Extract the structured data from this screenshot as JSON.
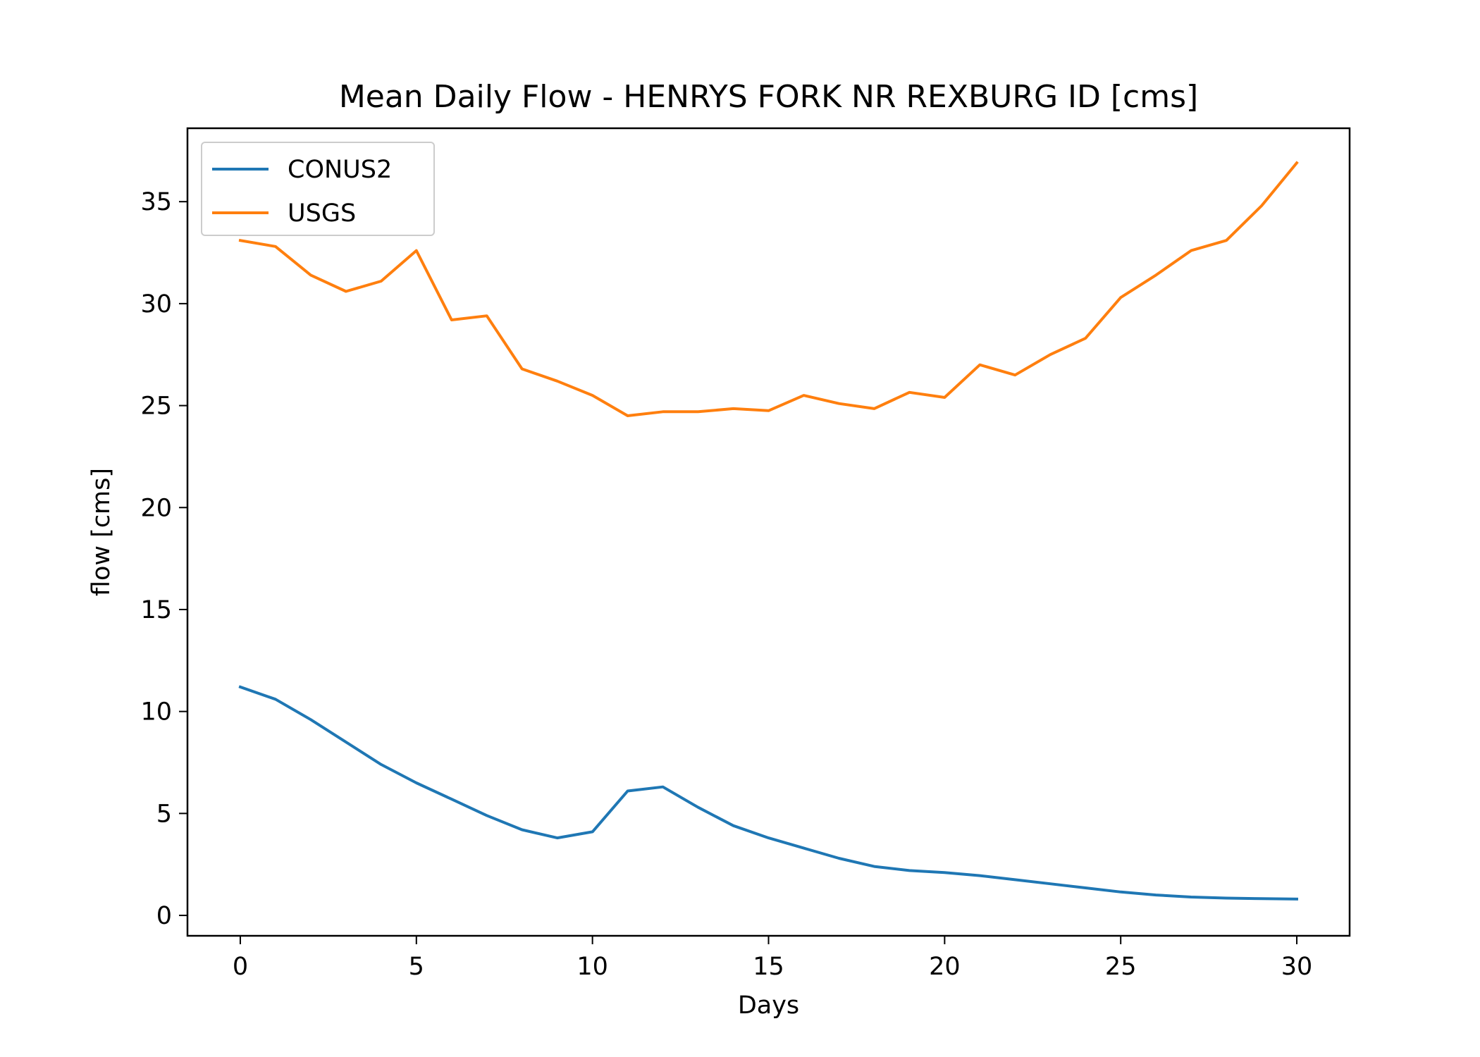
{
  "chart_data": {
    "type": "line",
    "title": "Mean Daily Flow - HENRYS FORK NR REXBURG ID [cms]",
    "xlabel": "Days",
    "ylabel": "flow [cms]",
    "xlim": [
      -1.5,
      31.5
    ],
    "ylim": [
      -1,
      38.6
    ],
    "xticks": [
      0,
      5,
      10,
      15,
      20,
      25,
      30
    ],
    "yticks": [
      0,
      5,
      10,
      15,
      20,
      25,
      30,
      35
    ],
    "grid": false,
    "legend_position": "upper left",
    "x": [
      0,
      1,
      2,
      3,
      4,
      5,
      6,
      7,
      8,
      9,
      10,
      11,
      12,
      13,
      14,
      15,
      16,
      17,
      18,
      19,
      20,
      21,
      22,
      23,
      24,
      25,
      26,
      27,
      28,
      29,
      30
    ],
    "series": [
      {
        "name": "CONUS2",
        "color": "#1f77b4",
        "values": [
          11.2,
          10.6,
          9.6,
          8.5,
          7.4,
          6.5,
          5.7,
          4.9,
          4.2,
          3.8,
          4.1,
          6.1,
          6.3,
          5.3,
          4.4,
          3.8,
          3.3,
          2.8,
          2.4,
          2.2,
          2.1,
          1.95,
          1.75,
          1.55,
          1.35,
          1.15,
          1.0,
          0.9,
          0.85,
          0.82,
          0.8
        ]
      },
      {
        "name": "USGS",
        "color": "#ff7f0e",
        "values": [
          33.1,
          32.8,
          31.4,
          30.6,
          31.1,
          32.6,
          29.2,
          29.4,
          26.8,
          26.2,
          25.5,
          24.5,
          24.7,
          24.7,
          24.85,
          24.75,
          25.5,
          25.1,
          24.85,
          25.65,
          25.4,
          27.0,
          26.5,
          27.5,
          28.3,
          30.3,
          31.4,
          32.6,
          33.1,
          34.8,
          36.9
        ]
      }
    ]
  }
}
